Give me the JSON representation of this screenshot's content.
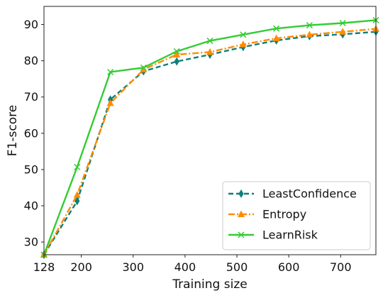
{
  "chart_data": {
    "type": "line",
    "xlabel": "Training size",
    "ylabel": "F1-score",
    "xlim": [
      128,
      768
    ],
    "ylim": [
      26.5,
      95
    ],
    "x_ticks": [
      128,
      200,
      300,
      400,
      500,
      600,
      700
    ],
    "x_tick_labels": [
      "128",
      "200",
      "300",
      "400",
      "500",
      "600",
      "700"
    ],
    "y_ticks": [
      30,
      40,
      50,
      60,
      70,
      80,
      90
    ],
    "y_tick_labels": [
      "30",
      "40",
      "50",
      "60",
      "70",
      "80",
      "90"
    ],
    "grid": false,
    "legend_position": "lower-right",
    "x": [
      128,
      192,
      256,
      320,
      384,
      448,
      512,
      576,
      640,
      704,
      768
    ],
    "series": [
      {
        "name": "LeastConfidence",
        "color": "#0f7f7a",
        "line_style": "dashed",
        "marker": "thin-diamond",
        "values": [
          26.5,
          41.3,
          69.3,
          77.1,
          79.8,
          81.7,
          83.8,
          85.6,
          86.8,
          87.3,
          88.0
        ]
      },
      {
        "name": "Entropy",
        "color": "#ff8c00",
        "line_style": "dash-dot",
        "marker": "triangle-up",
        "values": [
          26.5,
          43.0,
          68.3,
          77.6,
          81.7,
          82.4,
          84.5,
          86.2,
          87.2,
          88.0,
          88.8
        ]
      },
      {
        "name": "LearnRisk",
        "color": "#33cc33",
        "line_style": "solid",
        "marker": "x",
        "values": [
          26.5,
          50.7,
          76.9,
          78.1,
          82.6,
          85.5,
          87.2,
          88.9,
          89.8,
          90.4,
          91.2
        ]
      }
    ]
  }
}
